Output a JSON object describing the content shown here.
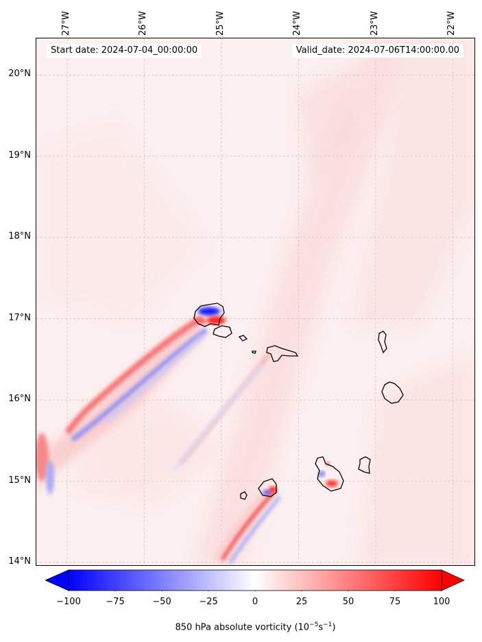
{
  "map": {
    "start_date": "Start date: 2024-07-04_00:00:00",
    "valid_date": "Valid_date: 2024-07-06T14:00:00.00",
    "lon_range": [
      -27.4,
      -21.7
    ],
    "lat_range": [
      13.95,
      20.45
    ],
    "longitude_labels": [
      {
        "lon": -27,
        "label": "27°W"
      },
      {
        "lon": -26,
        "label": "26°W"
      },
      {
        "lon": -25,
        "label": "25°W"
      },
      {
        "lon": -24,
        "label": "24°W"
      },
      {
        "lon": -23,
        "label": "23°W"
      },
      {
        "lon": -22,
        "label": "22°W"
      }
    ],
    "latitude_labels": [
      {
        "lat": 20,
        "label": "20°N"
      },
      {
        "lat": 19,
        "label": "19°N"
      },
      {
        "lat": 18,
        "label": "18°N"
      },
      {
        "lat": 17,
        "label": "17°N"
      },
      {
        "lat": 16,
        "label": "16°N"
      },
      {
        "lat": 15,
        "label": "15°N"
      },
      {
        "lat": 14,
        "label": "14°N"
      }
    ],
    "gridlines": true,
    "coastline_color": "#000000"
  },
  "colorbar": {
    "label_prefix": "850 hPa absolute vorticity (10",
    "label_exp1": "−5",
    "label_mid": "s",
    "label_exp2": "−1",
    "label_suffix": ")",
    "min": -100,
    "max": 100,
    "colormap": "bwr",
    "extend": "both",
    "ticks": [
      {
        "value": -100,
        "label": "−100"
      },
      {
        "value": -75,
        "label": "−75"
      },
      {
        "value": -50,
        "label": "−50"
      },
      {
        "value": -25,
        "label": "−25"
      },
      {
        "value": 0,
        "label": "0"
      },
      {
        "value": 25,
        "label": "25"
      },
      {
        "value": 50,
        "label": "50"
      },
      {
        "value": 75,
        "label": "75"
      },
      {
        "value": 100,
        "label": "100"
      }
    ]
  }
}
